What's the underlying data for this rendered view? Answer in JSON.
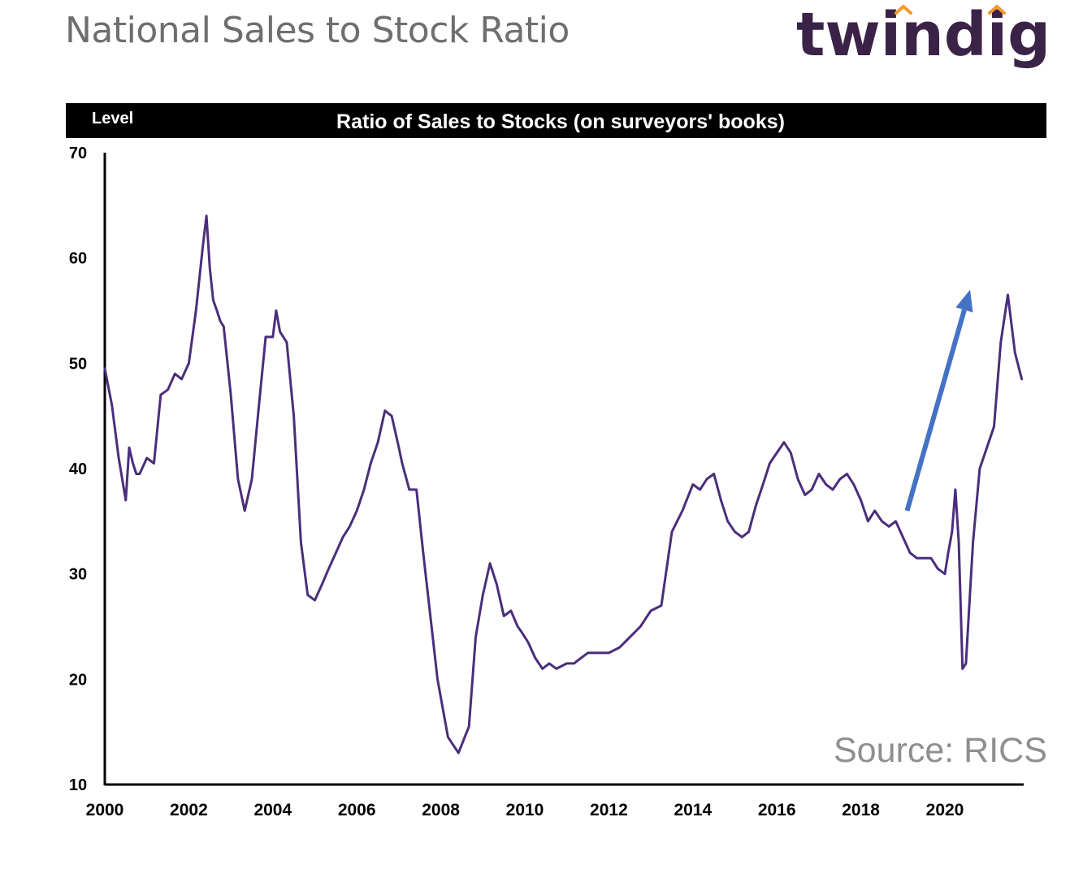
{
  "page": {
    "title": "National Sales to Stock Ratio",
    "logo_text": "twindig",
    "source": "Source: RICS"
  },
  "colors": {
    "title_text": "#6e6e6e",
    "logo_text": "#3b2348",
    "logo_accent": "#f29a2e",
    "header_band": "#000000",
    "series_line": "#4b2e7a",
    "arrow": "#4472c4",
    "source_text": "#8f8f8f"
  },
  "chart_data": {
    "type": "line",
    "title": "Ratio of Sales to Stocks (on surveyors' books)",
    "ylabel": "Level",
    "xlabel": "",
    "ylim": [
      10,
      70
    ],
    "xlim": [
      2000,
      2021.8
    ],
    "yticks": [
      10,
      20,
      30,
      40,
      50,
      60,
      70
    ],
    "xticks": [
      2000,
      2002,
      2004,
      2006,
      2008,
      2010,
      2012,
      2014,
      2016,
      2018,
      2020
    ],
    "grid": false,
    "annotations": [
      {
        "type": "arrow",
        "from": [
          2019.1,
          36
        ],
        "to": [
          2020.6,
          57
        ]
      }
    ],
    "series": [
      {
        "name": "Ratio of Sales to Stocks",
        "x": [
          2000.0,
          2000.17,
          2000.33,
          2000.5,
          2000.58,
          2000.67,
          2000.75,
          2000.83,
          2001.0,
          2001.17,
          2001.33,
          2001.5,
          2001.67,
          2001.83,
          2002.0,
          2002.17,
          2002.33,
          2002.42,
          2002.5,
          2002.58,
          2002.67,
          2002.75,
          2002.83,
          2003.0,
          2003.17,
          2003.33,
          2003.5,
          2003.67,
          2003.83,
          2004.0,
          2004.08,
          2004.17,
          2004.33,
          2004.5,
          2004.67,
          2004.83,
          2005.0,
          2005.17,
          2005.33,
          2005.5,
          2005.67,
          2005.83,
          2006.0,
          2006.17,
          2006.33,
          2006.5,
          2006.67,
          2006.83,
          2007.0,
          2007.08,
          2007.25,
          2007.42,
          2007.58,
          2007.75,
          2007.92,
          2008.17,
          2008.42,
          2008.67,
          2008.83,
          2009.0,
          2009.17,
          2009.33,
          2009.5,
          2009.67,
          2009.83,
          2009.92,
          2010.08,
          2010.25,
          2010.42,
          2010.58,
          2010.75,
          2011.0,
          2011.17,
          2011.33,
          2011.5,
          2011.75,
          2012.0,
          2012.25,
          2012.5,
          2012.75,
          2013.0,
          2013.25,
          2013.5,
          2013.75,
          2014.0,
          2014.17,
          2014.33,
          2014.5,
          2014.67,
          2014.83,
          2015.0,
          2015.17,
          2015.33,
          2015.5,
          2015.67,
          2015.83,
          2016.0,
          2016.17,
          2016.33,
          2016.5,
          2016.67,
          2016.83,
          2017.0,
          2017.17,
          2017.33,
          2017.5,
          2017.67,
          2017.83,
          2018.0,
          2018.17,
          2018.33,
          2018.5,
          2018.67,
          2018.83,
          2019.0,
          2019.17,
          2019.33,
          2019.5,
          2019.67,
          2019.83,
          2020.0,
          2020.08,
          2020.17,
          2020.25,
          2020.33,
          2020.42,
          2020.5,
          2020.67,
          2020.83,
          2021.0,
          2021.17,
          2021.33,
          2021.5,
          2021.67,
          2021.83
        ],
        "values": [
          49.5,
          46.0,
          41.0,
          37.0,
          42.0,
          40.5,
          39.5,
          39.5,
          41.0,
          40.5,
          47.0,
          47.5,
          49.0,
          48.5,
          50.0,
          55.0,
          61.0,
          64.0,
          59.0,
          56.0,
          55.0,
          54.0,
          53.5,
          47.0,
          39.0,
          36.0,
          39.0,
          46.0,
          52.5,
          52.5,
          55.0,
          53.0,
          52.0,
          45.0,
          33.0,
          28.0,
          27.5,
          29.0,
          30.5,
          32.0,
          33.5,
          34.5,
          36.0,
          38.0,
          40.5,
          42.5,
          45.5,
          45.0,
          42.0,
          40.5,
          38.0,
          38.0,
          32.0,
          26.0,
          20.0,
          14.5,
          13.0,
          15.5,
          24.0,
          28.0,
          31.0,
          29.0,
          26.0,
          26.5,
          25.0,
          24.5,
          23.5,
          22.0,
          21.0,
          21.5,
          21.0,
          21.5,
          21.5,
          22.0,
          22.5,
          22.5,
          22.5,
          23.0,
          24.0,
          25.0,
          26.5,
          27.0,
          34.0,
          36.0,
          38.5,
          38.0,
          39.0,
          39.5,
          37.0,
          35.0,
          34.0,
          33.5,
          34.0,
          36.5,
          38.5,
          40.5,
          41.5,
          42.5,
          41.5,
          39.0,
          37.5,
          38.0,
          39.5,
          38.5,
          38.0,
          39.0,
          39.5,
          38.5,
          37.0,
          35.0,
          36.0,
          35.0,
          34.5,
          35.0,
          33.5,
          32.0,
          31.5,
          31.5,
          31.5,
          30.5,
          30.0,
          32.0,
          34.0,
          38.0,
          33.0,
          21.0,
          21.5,
          33.0,
          40.0,
          42.0,
          44.0,
          52.0,
          56.5,
          51.0,
          48.5
        ]
      }
    ]
  }
}
